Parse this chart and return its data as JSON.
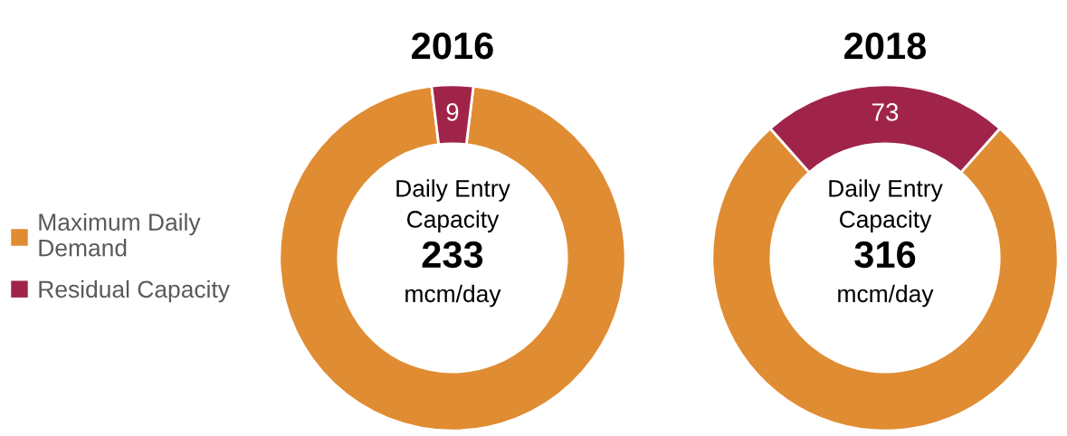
{
  "chart_data": [
    {
      "type": "donut",
      "title": "2016",
      "categories": [
        "Maximum Daily Demand",
        "Residual Capacity"
      ],
      "values": [
        224,
        9
      ],
      "value_labels": [
        null,
        "9"
      ],
      "colors": [
        "#e08c33",
        "#a0244a"
      ],
      "legend": "left",
      "annotations": [
        "Daily Entry Capacity",
        "233",
        "mcm/day"
      ]
    },
    {
      "type": "donut",
      "title": "2018",
      "categories": [
        null,
        null
      ],
      "values": [
        243,
        73
      ],
      "value_labels": [
        null,
        "73"
      ],
      "colors": [
        "#e08c33",
        "#a0244a"
      ],
      "annotations": [
        "Daily Entry Capacity",
        "316",
        "mcm/day"
      ]
    }
  ]
}
